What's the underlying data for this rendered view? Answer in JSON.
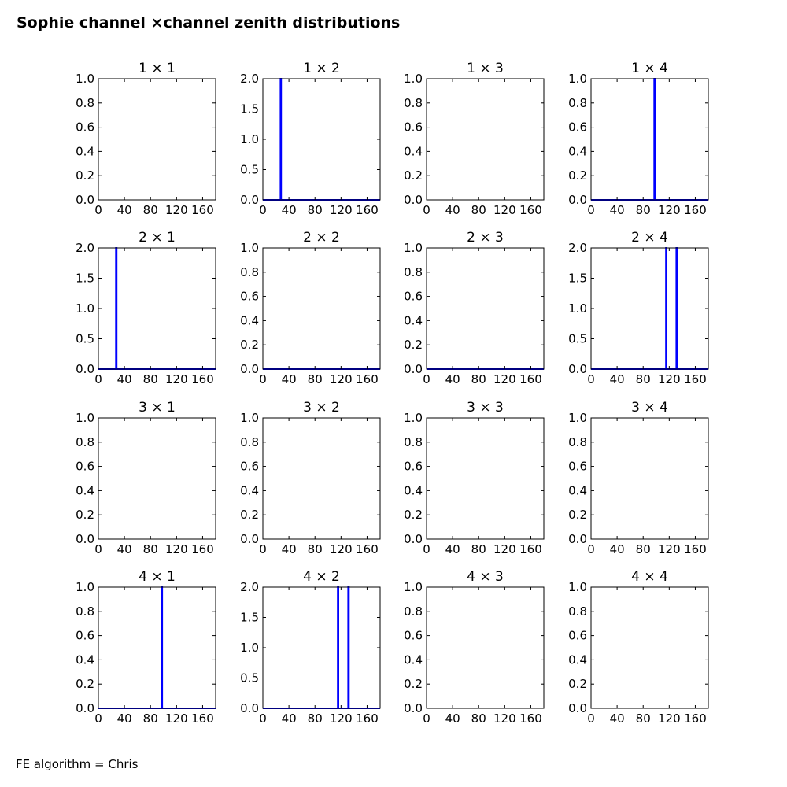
{
  "figure": {
    "title": "Sophie channel ×channel zenith distributions",
    "footer": "FE algorithm = Chris"
  },
  "colors": {
    "line": "#0000ff",
    "axes": "#000000",
    "background": "#ffffff"
  },
  "chart_data": [
    {
      "type": "line",
      "title": "1 × 1",
      "xlim": [
        0,
        180
      ],
      "ylim": [
        0,
        1
      ],
      "xticks": [
        0,
        40,
        80,
        120,
        160
      ],
      "yticks": [
        0.0,
        0.2,
        0.4,
        0.6,
        0.8,
        1.0
      ],
      "ytick_labels": [
        "0.0",
        "0.2",
        "0.4",
        "0.6",
        "0.8",
        "1.0"
      ],
      "grid": false,
      "x": [],
      "y": []
    },
    {
      "type": "line",
      "title": "1 × 2",
      "xlim": [
        0,
        180
      ],
      "ylim": [
        0,
        2
      ],
      "xticks": [
        0,
        40,
        80,
        120,
        160
      ],
      "yticks": [
        0.0,
        0.5,
        1.0,
        1.5,
        2.0
      ],
      "ytick_labels": [
        "0.0",
        "0.5",
        "1.0",
        "1.5",
        "2.0"
      ],
      "grid": false,
      "x": [
        0,
        27,
        27,
        28,
        28,
        180
      ],
      "y": [
        0,
        0,
        2,
        2,
        0,
        0
      ]
    },
    {
      "type": "line",
      "title": "1 × 3",
      "xlim": [
        0,
        180
      ],
      "ylim": [
        0,
        1
      ],
      "xticks": [
        0,
        40,
        80,
        120,
        160
      ],
      "yticks": [
        0.0,
        0.2,
        0.4,
        0.6,
        0.8,
        1.0
      ],
      "ytick_labels": [
        "0.0",
        "0.2",
        "0.4",
        "0.6",
        "0.8",
        "1.0"
      ],
      "grid": false,
      "x": [],
      "y": []
    },
    {
      "type": "line",
      "title": "1 × 4",
      "xlim": [
        0,
        180
      ],
      "ylim": [
        0,
        1
      ],
      "xticks": [
        0,
        40,
        80,
        120,
        160
      ],
      "yticks": [
        0.0,
        0.2,
        0.4,
        0.6,
        0.8,
        1.0
      ],
      "ytick_labels": [
        "0.0",
        "0.2",
        "0.4",
        "0.6",
        "0.8",
        "1.0"
      ],
      "grid": false,
      "x": [
        0,
        97,
        97,
        98,
        98,
        180
      ],
      "y": [
        0,
        0,
        1,
        1,
        0,
        0
      ]
    },
    {
      "type": "line",
      "title": "2 × 1",
      "xlim": [
        0,
        180
      ],
      "ylim": [
        0,
        2
      ],
      "xticks": [
        0,
        40,
        80,
        120,
        160
      ],
      "yticks": [
        0.0,
        0.5,
        1.0,
        1.5,
        2.0
      ],
      "ytick_labels": [
        "0.0",
        "0.5",
        "1.0",
        "1.5",
        "2.0"
      ],
      "grid": false,
      "x": [
        0,
        27,
        27,
        28,
        28,
        180
      ],
      "y": [
        0,
        0,
        2,
        2,
        0,
        0
      ]
    },
    {
      "type": "line",
      "title": "2 × 2",
      "xlim": [
        0,
        180
      ],
      "ylim": [
        0,
        1
      ],
      "xticks": [
        0,
        40,
        80,
        120,
        160
      ],
      "yticks": [
        0.0,
        0.2,
        0.4,
        0.6,
        0.8,
        1.0
      ],
      "ytick_labels": [
        "0.0",
        "0.2",
        "0.4",
        "0.6",
        "0.8",
        "1.0"
      ],
      "grid": false,
      "x": [
        0,
        180
      ],
      "y": [
        0,
        0
      ]
    },
    {
      "type": "line",
      "title": "2 × 3",
      "xlim": [
        0,
        180
      ],
      "ylim": [
        0,
        1
      ],
      "xticks": [
        0,
        40,
        80,
        120,
        160
      ],
      "yticks": [
        0.0,
        0.2,
        0.4,
        0.6,
        0.8,
        1.0
      ],
      "ytick_labels": [
        "0.0",
        "0.2",
        "0.4",
        "0.6",
        "0.8",
        "1.0"
      ],
      "grid": false,
      "x": [
        0,
        180
      ],
      "y": [
        0,
        0
      ]
    },
    {
      "type": "line",
      "title": "2 × 4",
      "xlim": [
        0,
        180
      ],
      "ylim": [
        0,
        2
      ],
      "xticks": [
        0,
        40,
        80,
        120,
        160
      ],
      "yticks": [
        0.0,
        0.5,
        1.0,
        1.5,
        2.0
      ],
      "ytick_labels": [
        "0.0",
        "0.5",
        "1.0",
        "1.5",
        "2.0"
      ],
      "grid": false,
      "x": [
        0,
        115,
        115,
        116,
        116,
        131,
        131,
        132,
        132,
        180
      ],
      "y": [
        0,
        0,
        2,
        2,
        0,
        0,
        2,
        2,
        0,
        0
      ]
    },
    {
      "type": "line",
      "title": "3 × 1",
      "xlim": [
        0,
        180
      ],
      "ylim": [
        0,
        1
      ],
      "xticks": [
        0,
        40,
        80,
        120,
        160
      ],
      "yticks": [
        0.0,
        0.2,
        0.4,
        0.6,
        0.8,
        1.0
      ],
      "ytick_labels": [
        "0.0",
        "0.2",
        "0.4",
        "0.6",
        "0.8",
        "1.0"
      ],
      "grid": false,
      "x": [],
      "y": []
    },
    {
      "type": "line",
      "title": "3 × 2",
      "xlim": [
        0,
        180
      ],
      "ylim": [
        0,
        1
      ],
      "xticks": [
        0,
        40,
        80,
        120,
        160
      ],
      "yticks": [
        0.0,
        0.2,
        0.4,
        0.6,
        0.8,
        1.0
      ],
      "ytick_labels": [
        "0.0",
        "0.2",
        "0.4",
        "0.6",
        "0.8",
        "1.0"
      ],
      "grid": false,
      "x": [],
      "y": []
    },
    {
      "type": "line",
      "title": "3 × 3",
      "xlim": [
        0,
        180
      ],
      "ylim": [
        0,
        1
      ],
      "xticks": [
        0,
        40,
        80,
        120,
        160
      ],
      "yticks": [
        0.0,
        0.2,
        0.4,
        0.6,
        0.8,
        1.0
      ],
      "ytick_labels": [
        "0.0",
        "0.2",
        "0.4",
        "0.6",
        "0.8",
        "1.0"
      ],
      "grid": false,
      "x": [],
      "y": []
    },
    {
      "type": "line",
      "title": "3 × 4",
      "xlim": [
        0,
        180
      ],
      "ylim": [
        0,
        1
      ],
      "xticks": [
        0,
        40,
        80,
        120,
        160
      ],
      "yticks": [
        0.0,
        0.2,
        0.4,
        0.6,
        0.8,
        1.0
      ],
      "ytick_labels": [
        "0.0",
        "0.2",
        "0.4",
        "0.6",
        "0.8",
        "1.0"
      ],
      "grid": false,
      "x": [],
      "y": []
    },
    {
      "type": "line",
      "title": "4 × 1",
      "xlim": [
        0,
        180
      ],
      "ylim": [
        0,
        1
      ],
      "xticks": [
        0,
        40,
        80,
        120,
        160
      ],
      "yticks": [
        0.0,
        0.2,
        0.4,
        0.6,
        0.8,
        1.0
      ],
      "ytick_labels": [
        "0.0",
        "0.2",
        "0.4",
        "0.6",
        "0.8",
        "1.0"
      ],
      "grid": false,
      "x": [
        0,
        97,
        97,
        98,
        98,
        180
      ],
      "y": [
        0,
        0,
        1,
        1,
        0,
        0
      ]
    },
    {
      "type": "line",
      "title": "4 × 2",
      "xlim": [
        0,
        180
      ],
      "ylim": [
        0,
        2
      ],
      "xticks": [
        0,
        40,
        80,
        120,
        160
      ],
      "yticks": [
        0.0,
        0.5,
        1.0,
        1.5,
        2.0
      ],
      "ytick_labels": [
        "0.0",
        "0.5",
        "1.0",
        "1.5",
        "2.0"
      ],
      "grid": false,
      "x": [
        0,
        115,
        115,
        116,
        116,
        131,
        131,
        132,
        132,
        180
      ],
      "y": [
        0,
        0,
        2,
        2,
        0,
        0,
        2,
        2,
        0,
        0
      ]
    },
    {
      "type": "line",
      "title": "4 × 3",
      "xlim": [
        0,
        180
      ],
      "ylim": [
        0,
        1
      ],
      "xticks": [
        0,
        40,
        80,
        120,
        160
      ],
      "yticks": [
        0.0,
        0.2,
        0.4,
        0.6,
        0.8,
        1.0
      ],
      "ytick_labels": [
        "0.0",
        "0.2",
        "0.4",
        "0.6",
        "0.8",
        "1.0"
      ],
      "grid": false,
      "x": [],
      "y": []
    },
    {
      "type": "line",
      "title": "4 × 4",
      "xlim": [
        0,
        180
      ],
      "ylim": [
        0,
        1
      ],
      "xticks": [
        0,
        40,
        80,
        120,
        160
      ],
      "yticks": [
        0.0,
        0.2,
        0.4,
        0.6,
        0.8,
        1.0
      ],
      "ytick_labels": [
        "0.0",
        "0.2",
        "0.4",
        "0.6",
        "0.8",
        "1.0"
      ],
      "grid": false,
      "x": [],
      "y": []
    }
  ]
}
